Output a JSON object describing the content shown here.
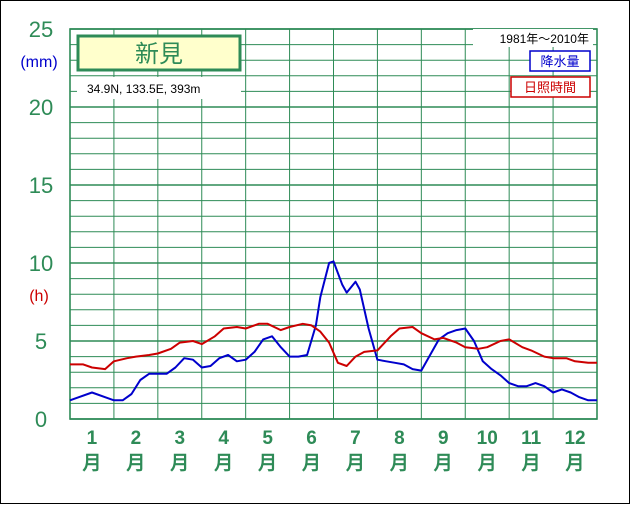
{
  "station": {
    "name": "新見",
    "coords": "34.9N,  133.5E,  393m",
    "period": "1981年〜2010年"
  },
  "units": {
    "precip": "(mm)",
    "sun": "(h)"
  },
  "legend": [
    {
      "label": "降水量",
      "color": "#0000cc"
    },
    {
      "label": "日照時間",
      "color": "#cc0000"
    }
  ],
  "colors": {
    "grid": "#2e8b57",
    "accent": "#2e8b57",
    "station_box_fill": "#ffffcc"
  },
  "chart_data": {
    "type": "line",
    "title": "新見",
    "categories": [
      "1",
      "2",
      "3",
      "4",
      "5",
      "6",
      "7",
      "8",
      "9",
      "10",
      "11",
      "12"
    ],
    "month_suffix": "月",
    "y_ticks": [
      "0",
      "5",
      "10",
      "15",
      "20",
      "25"
    ],
    "ylim": [
      0,
      25
    ],
    "x_range": [
      0.5,
      12.5
    ],
    "grid": true,
    "series": [
      {
        "name": "降水量",
        "color": "#0000cc",
        "x": [
          0.5,
          0.7,
          1.0,
          1.3,
          1.5,
          1.7,
          1.9,
          2.1,
          2.3,
          2.5,
          2.7,
          2.9,
          3.1,
          3.3,
          3.5,
          3.7,
          3.9,
          4.1,
          4.3,
          4.5,
          4.7,
          4.9,
          5.1,
          5.3,
          5.5,
          5.7,
          5.9,
          6.1,
          6.2,
          6.4,
          6.5,
          6.7,
          6.8,
          7.0,
          7.1,
          7.3,
          7.5,
          7.7,
          7.9,
          8.1,
          8.3,
          8.5,
          8.7,
          8.9,
          9.1,
          9.3,
          9.5,
          9.7,
          9.9,
          10.1,
          10.3,
          10.5,
          10.7,
          10.9,
          11.1,
          11.3,
          11.5,
          11.7,
          11.9,
          12.1,
          12.3,
          12.5
        ],
        "values": [
          1.2,
          1.4,
          1.7,
          1.4,
          1.2,
          1.2,
          1.6,
          2.5,
          2.9,
          2.9,
          2.9,
          3.3,
          3.9,
          3.8,
          3.3,
          3.4,
          3.9,
          4.1,
          3.7,
          3.8,
          4.3,
          5.1,
          5.3,
          4.6,
          4.0,
          4.0,
          4.1,
          6.0,
          7.8,
          10.0,
          10.1,
          8.6,
          8.1,
          8.8,
          8.3,
          5.8,
          3.8,
          3.7,
          3.6,
          3.5,
          3.2,
          3.1,
          4.1,
          5.1,
          5.5,
          5.7,
          5.8,
          5.0,
          3.7,
          3.2,
          2.8,
          2.3,
          2.1,
          2.1,
          2.3,
          2.1,
          1.7,
          1.9,
          1.7,
          1.4,
          1.2,
          1.2
        ]
      },
      {
        "name": "日照時間",
        "color": "#cc0000",
        "x": [
          0.5,
          0.8,
          1.0,
          1.3,
          1.5,
          1.8,
          2.0,
          2.3,
          2.5,
          2.8,
          3.0,
          3.3,
          3.5,
          3.8,
          4.0,
          4.3,
          4.5,
          4.8,
          5.0,
          5.3,
          5.5,
          5.8,
          6.0,
          6.2,
          6.4,
          6.6,
          6.8,
          7.0,
          7.2,
          7.5,
          7.8,
          8.0,
          8.3,
          8.5,
          8.8,
          9.0,
          9.3,
          9.5,
          9.8,
          10.0,
          10.3,
          10.5,
          10.8,
          11.0,
          11.3,
          11.5,
          11.8,
          12.0,
          12.3,
          12.5
        ],
        "values": [
          3.5,
          3.5,
          3.3,
          3.2,
          3.7,
          3.9,
          4.0,
          4.1,
          4.2,
          4.5,
          4.9,
          5.0,
          4.8,
          5.3,
          5.8,
          5.9,
          5.8,
          6.1,
          6.1,
          5.7,
          5.9,
          6.1,
          6.0,
          5.6,
          4.9,
          3.6,
          3.4,
          4.0,
          4.3,
          4.4,
          5.3,
          5.8,
          5.9,
          5.5,
          5.1,
          5.2,
          4.9,
          4.6,
          4.5,
          4.6,
          5.0,
          5.1,
          4.6,
          4.4,
          4.0,
          3.9,
          3.9,
          3.7,
          3.6,
          3.6
        ]
      }
    ]
  }
}
